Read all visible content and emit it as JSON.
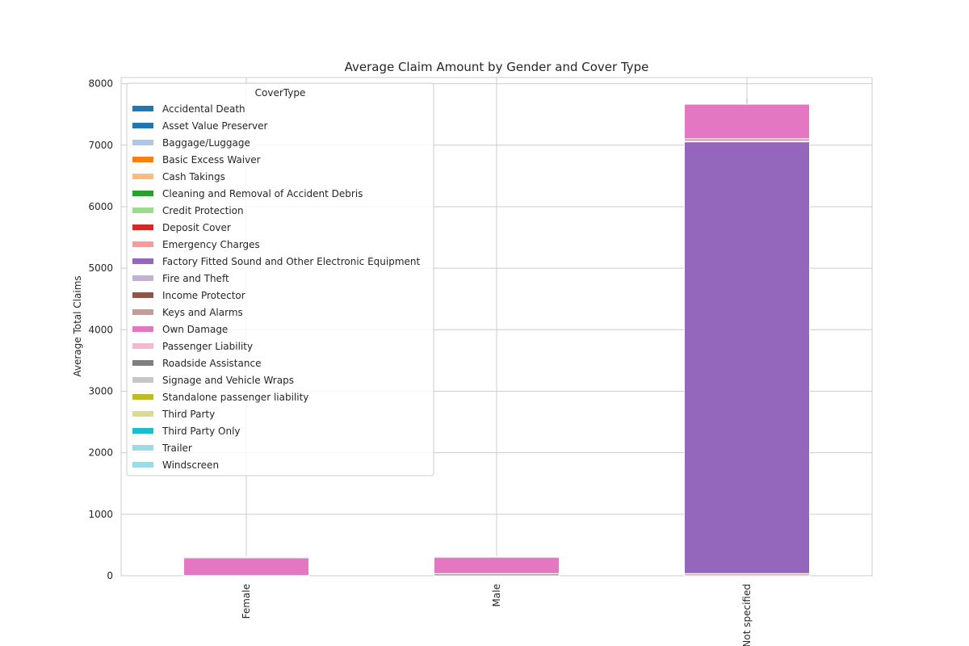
{
  "chart_data": {
    "type": "bar",
    "stacked": true,
    "title": "Average Claim Amount by Gender and Cover Type",
    "xlabel": "",
    "ylabel": "Average Total Claims",
    "ylim": [
      0,
      8100
    ],
    "yticks": [
      0,
      1000,
      2000,
      3000,
      4000,
      5000,
      6000,
      7000,
      8000
    ],
    "grid": true,
    "legend_title": "CoverType",
    "legend_placement": "top-left",
    "categories": [
      "Female",
      "Male",
      "Not specified"
    ],
    "series": [
      {
        "name": "Accidental Death",
        "color": "#1f77b4",
        "values": [
          0,
          0,
          0
        ]
      },
      {
        "name": "Asset Value Preserver",
        "color": "#1f77b4",
        "values": [
          0,
          0,
          0
        ]
      },
      {
        "name": "Baggage/Luggage",
        "color": "#aec7e8",
        "values": [
          0,
          0,
          0
        ]
      },
      {
        "name": "Basic Excess Waiver",
        "color": "#ff7f0e",
        "values": [
          0,
          0,
          0
        ]
      },
      {
        "name": "Cash Takings",
        "color": "#ffbb78",
        "values": [
          0,
          0,
          0
        ]
      },
      {
        "name": "Cleaning and Removal of Accident Debris",
        "color": "#2ca02c",
        "values": [
          0,
          0,
          0
        ]
      },
      {
        "name": "Credit Protection",
        "color": "#98df8a",
        "values": [
          0,
          0,
          0
        ]
      },
      {
        "name": "Deposit Cover",
        "color": "#d62728",
        "values": [
          0,
          0,
          0
        ]
      },
      {
        "name": "Emergency Charges",
        "color": "#ff9896",
        "values": [
          0,
          2,
          35
        ]
      },
      {
        "name": "Factory Fitted Sound and Other Electronic Equipment",
        "color": "#9467bd",
        "values": [
          0,
          0,
          7020
        ]
      },
      {
        "name": "Fire and Theft",
        "color": "#c5b0d5",
        "values": [
          0,
          0,
          10
        ]
      },
      {
        "name": "Income Protector",
        "color": "#8c564b",
        "values": [
          2,
          28,
          0
        ]
      },
      {
        "name": "Keys and Alarms",
        "color": "#c49c94",
        "values": [
          0,
          5,
          40
        ]
      },
      {
        "name": "Own Damage",
        "color": "#e377c2",
        "values": [
          290,
          270,
          565
        ]
      },
      {
        "name": "Passenger Liability",
        "color": "#f7b6d2",
        "values": [
          0,
          0,
          0
        ]
      },
      {
        "name": "Roadside Assistance",
        "color": "#7f7f7f",
        "values": [
          0,
          0,
          0
        ]
      },
      {
        "name": "Signage and Vehicle Wraps",
        "color": "#c7c7c7",
        "values": [
          20,
          0,
          0
        ]
      },
      {
        "name": "Standalone passenger liability",
        "color": "#bcbd22",
        "values": [
          0,
          0,
          0
        ]
      },
      {
        "name": "Third Party",
        "color": "#dbdb8d",
        "values": [
          0,
          0,
          0
        ]
      },
      {
        "name": "Third Party Only",
        "color": "#17becf",
        "values": [
          0,
          0,
          0
        ]
      },
      {
        "name": "Trailer",
        "color": "#9edae5",
        "values": [
          0,
          0,
          0
        ]
      },
      {
        "name": "Windscreen",
        "color": "#9edae5",
        "values": [
          3,
          2,
          3
        ]
      }
    ],
    "errorbar_top": [
      null,
      null,
      7760
    ]
  }
}
